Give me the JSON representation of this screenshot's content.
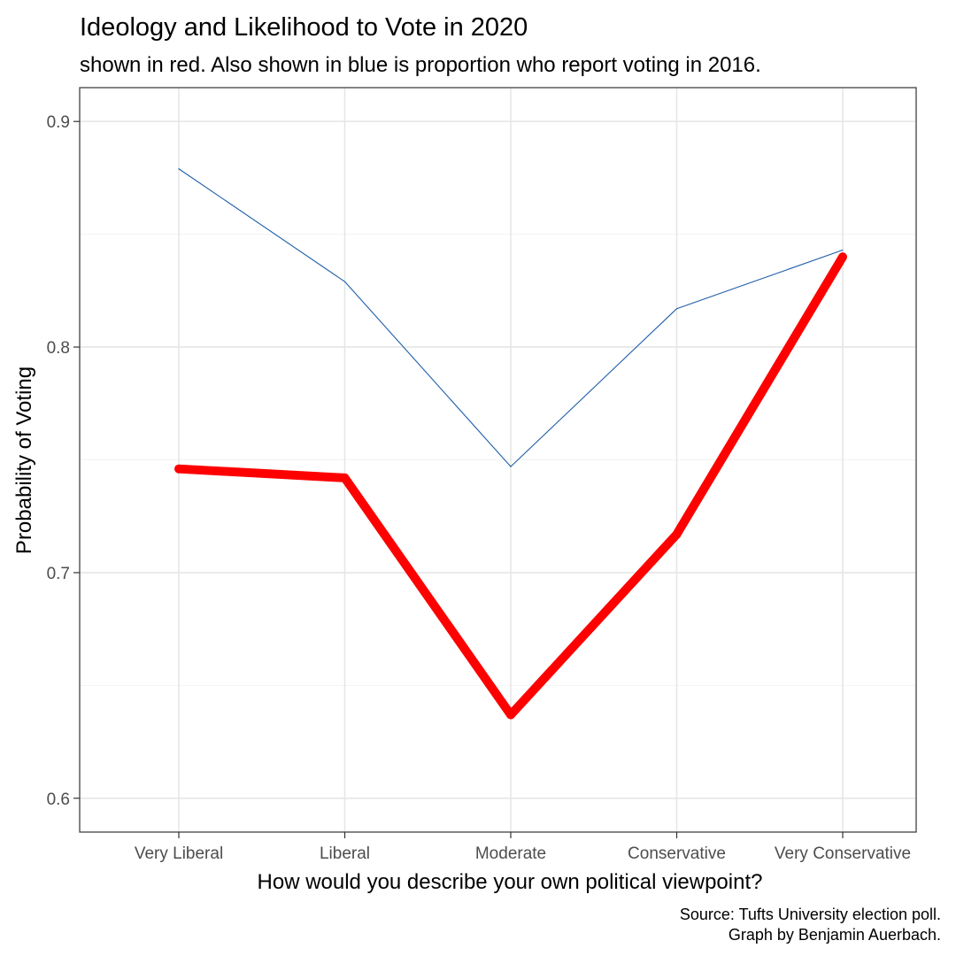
{
  "chart_data": {
    "type": "line",
    "title": "Ideology and Likelihood to Vote in 2020",
    "subtitle": "shown in red. Also shown in blue is proportion who report voting in 2016.",
    "xlabel": "How would you describe your own political viewpoint?",
    "ylabel": "Probability of Voting",
    "categories": [
      "Very Liberal",
      "Liberal",
      "Moderate",
      "Conservative",
      "Very Conservative"
    ],
    "ylim": [
      0.585,
      0.915
    ],
    "yticks": [
      0.6,
      0.7,
      0.8,
      0.9
    ],
    "ytick_labels": [
      "0.6",
      "0.7",
      "0.8",
      "0.9"
    ],
    "grid": true,
    "series": [
      {
        "color": "#1f5ea8",
        "values": [
          0.879,
          0.829,
          0.747,
          0.817,
          0.843
        ]
      },
      {
        "color": "#ff0000",
        "values": [
          0.746,
          0.742,
          0.637,
          0.717,
          0.84
        ]
      }
    ],
    "caption_lines": [
      "Source: Tufts University election poll.",
      "Graph by Benjamin Auerbach."
    ]
  }
}
